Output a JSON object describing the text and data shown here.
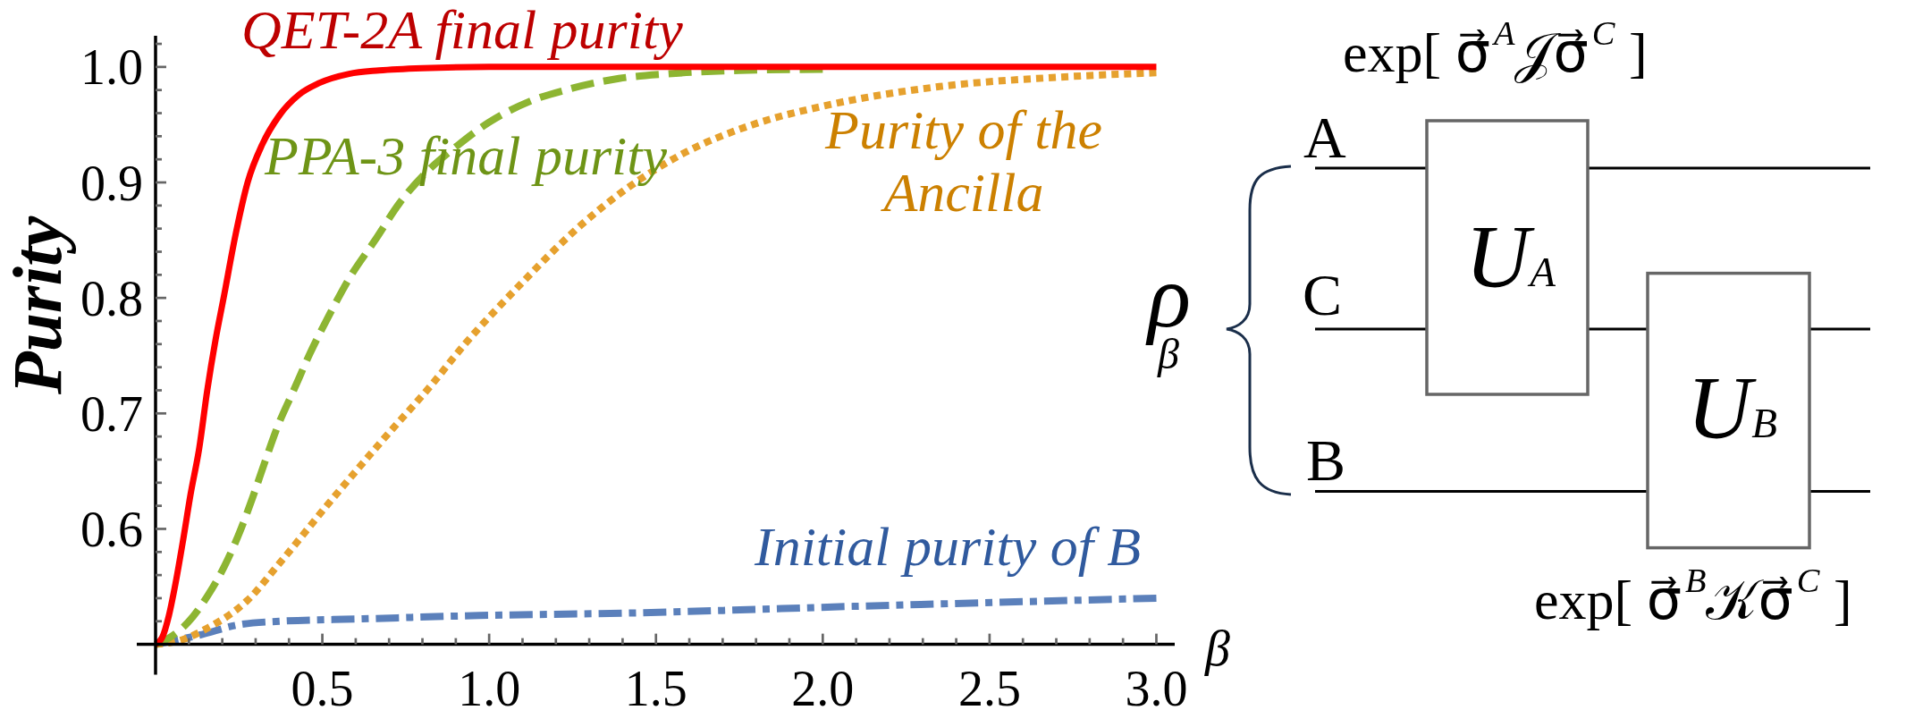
{
  "chart_data": {
    "type": "line",
    "xlabel": "β",
    "ylabel": "Purity",
    "xlim": [
      0,
      3.055
    ],
    "ylim": [
      0.5,
      1.027
    ],
    "xticks": [
      {
        "value": 0.1,
        "label": null
      },
      {
        "value": 0.2,
        "label": null
      },
      {
        "value": 0.3,
        "label": null
      },
      {
        "value": 0.4,
        "label": null
      },
      0.5,
      {
        "value": 0.6,
        "label": null
      },
      {
        "value": 0.7,
        "label": null
      },
      {
        "value": 0.8,
        "label": null
      },
      {
        "value": 0.9,
        "label": null
      },
      {
        "value": 1,
        "label": "1.0"
      },
      {
        "value": 1.1,
        "label": null
      },
      {
        "value": 1.2,
        "label": null
      },
      {
        "value": 1.3,
        "label": null
      },
      {
        "value": 1.4,
        "label": null
      },
      1.5,
      {
        "value": 1.6,
        "label": null
      },
      {
        "value": 1.7,
        "label": null
      },
      {
        "value": 1.8,
        "label": null
      },
      {
        "value": 1.9,
        "label": null
      },
      {
        "value": 2,
        "label": "2.0"
      },
      {
        "value": 2.1,
        "label": null
      },
      {
        "value": 2.2,
        "label": null
      },
      {
        "value": 2.3,
        "label": null
      },
      {
        "value": 2.4,
        "label": null
      },
      2.5,
      {
        "value": 2.6,
        "label": null
      },
      {
        "value": 2.7,
        "label": null
      },
      {
        "value": 2.8,
        "label": null
      },
      {
        "value": 2.9,
        "label": null
      },
      {
        "value": 3,
        "label": "3.0"
      }
    ],
    "yticks": [
      {
        "value": 0.52,
        "label": null
      },
      {
        "value": 0.54,
        "label": null
      },
      {
        "value": 0.56,
        "label": null
      },
      {
        "value": 0.58,
        "label": null
      },
      0.6,
      {
        "value": 0.62,
        "label": null
      },
      {
        "value": 0.64,
        "label": null
      },
      {
        "value": 0.66,
        "label": null
      },
      {
        "value": 0.68,
        "label": null
      },
      0.7,
      {
        "value": 0.72,
        "label": null
      },
      {
        "value": 0.74,
        "label": null
      },
      {
        "value": 0.76,
        "label": null
      },
      {
        "value": 0.78,
        "label": null
      },
      0.8,
      {
        "value": 0.82,
        "label": null
      },
      {
        "value": 0.84,
        "label": null
      },
      {
        "value": 0.86,
        "label": null
      },
      {
        "value": 0.88,
        "label": null
      },
      0.9,
      {
        "value": 0.92,
        "label": null
      },
      {
        "value": 0.94,
        "label": null
      },
      {
        "value": 0.96,
        "label": null
      },
      {
        "value": 0.98,
        "label": null
      },
      {
        "value": 1,
        "label": "1.0"
      },
      {
        "value": 1.02,
        "label": null
      }
    ],
    "series": [
      {
        "name": "QET-2A final purity",
        "color": "#ff0000",
        "line_style": "solid",
        "x": [
          0,
          0.02,
          0.04,
          0.06,
          0.083,
          0.105,
          0.131,
          0.155,
          0.18,
          0.204,
          0.24,
          0.276,
          0.32,
          0.371,
          0.43,
          0.49,
          0.58,
          0.67,
          0.8,
          1.0,
          1.5,
          2.0,
          2.5,
          3.0
        ],
        "values": [
          0.5,
          0.506,
          0.525,
          0.553,
          0.591,
          0.63,
          0.67,
          0.72,
          0.764,
          0.8,
          0.855,
          0.9,
          0.933,
          0.958,
          0.976,
          0.986,
          0.994,
          0.997,
          0.999,
          1.0,
          1.0,
          1.0,
          1.0,
          1.0
        ]
      },
      {
        "name": "PPA-3 final purity",
        "color": "#8db532",
        "line_style": "dashed",
        "x": [
          0,
          0.037,
          0.097,
          0.158,
          0.207,
          0.256,
          0.292,
          0.329,
          0.365,
          0.414,
          0.463,
          0.524,
          0.585,
          0.658,
          0.731,
          0.816,
          0.901,
          0.999,
          1.12,
          1.242,
          1.389,
          1.535,
          1.75,
          2.0
        ],
        "values": [
          0.5,
          0.505,
          0.519,
          0.543,
          0.568,
          0.6,
          0.628,
          0.659,
          0.688,
          0.72,
          0.752,
          0.787,
          0.819,
          0.85,
          0.882,
          0.91,
          0.931,
          0.952,
          0.97,
          0.981,
          0.99,
          0.994,
          0.997,
          0.998
        ]
      },
      {
        "name": "Purity of the Ancilla",
        "color": "#e6a12e",
        "line_style": "dotted",
        "x": [
          0,
          0.08,
          0.155,
          0.275,
          0.371,
          0.51,
          0.678,
          0.828,
          0.927,
          1.088,
          1.275,
          1.409,
          1.575,
          1.8,
          2.0,
          2.35,
          2.7,
          3.0
        ],
        "values": [
          0.5,
          0.504,
          0.514,
          0.538,
          0.57,
          0.619,
          0.676,
          0.725,
          0.76,
          0.81,
          0.863,
          0.894,
          0.924,
          0.951,
          0.966,
          0.983,
          0.991,
          0.995
        ]
      },
      {
        "name": "Initial purity of B",
        "color": "#5b80bb",
        "line_style": "dashdot",
        "x": [
          0,
          0.05,
          0.131,
          0.25,
          0.371,
          0.61,
          0.97,
          1.4,
          2.1,
          3.0
        ],
        "values": [
          0.5,
          0.503,
          0.508,
          0.517,
          0.52,
          0.522,
          0.525,
          0.527,
          0.533,
          0.54
        ]
      }
    ],
    "annotations": [
      "exp[ σ⃗$^{A}$𝒥σ⃗$^{C}$ ]",
      "A",
      "C",
      "B",
      "U$_{A}$",
      "U$_{B}$",
      "ρ$_{β}$",
      "exp[ σ⃗$^{B}$𝒦σ⃗$^{C}$ ]"
    ]
  }
}
